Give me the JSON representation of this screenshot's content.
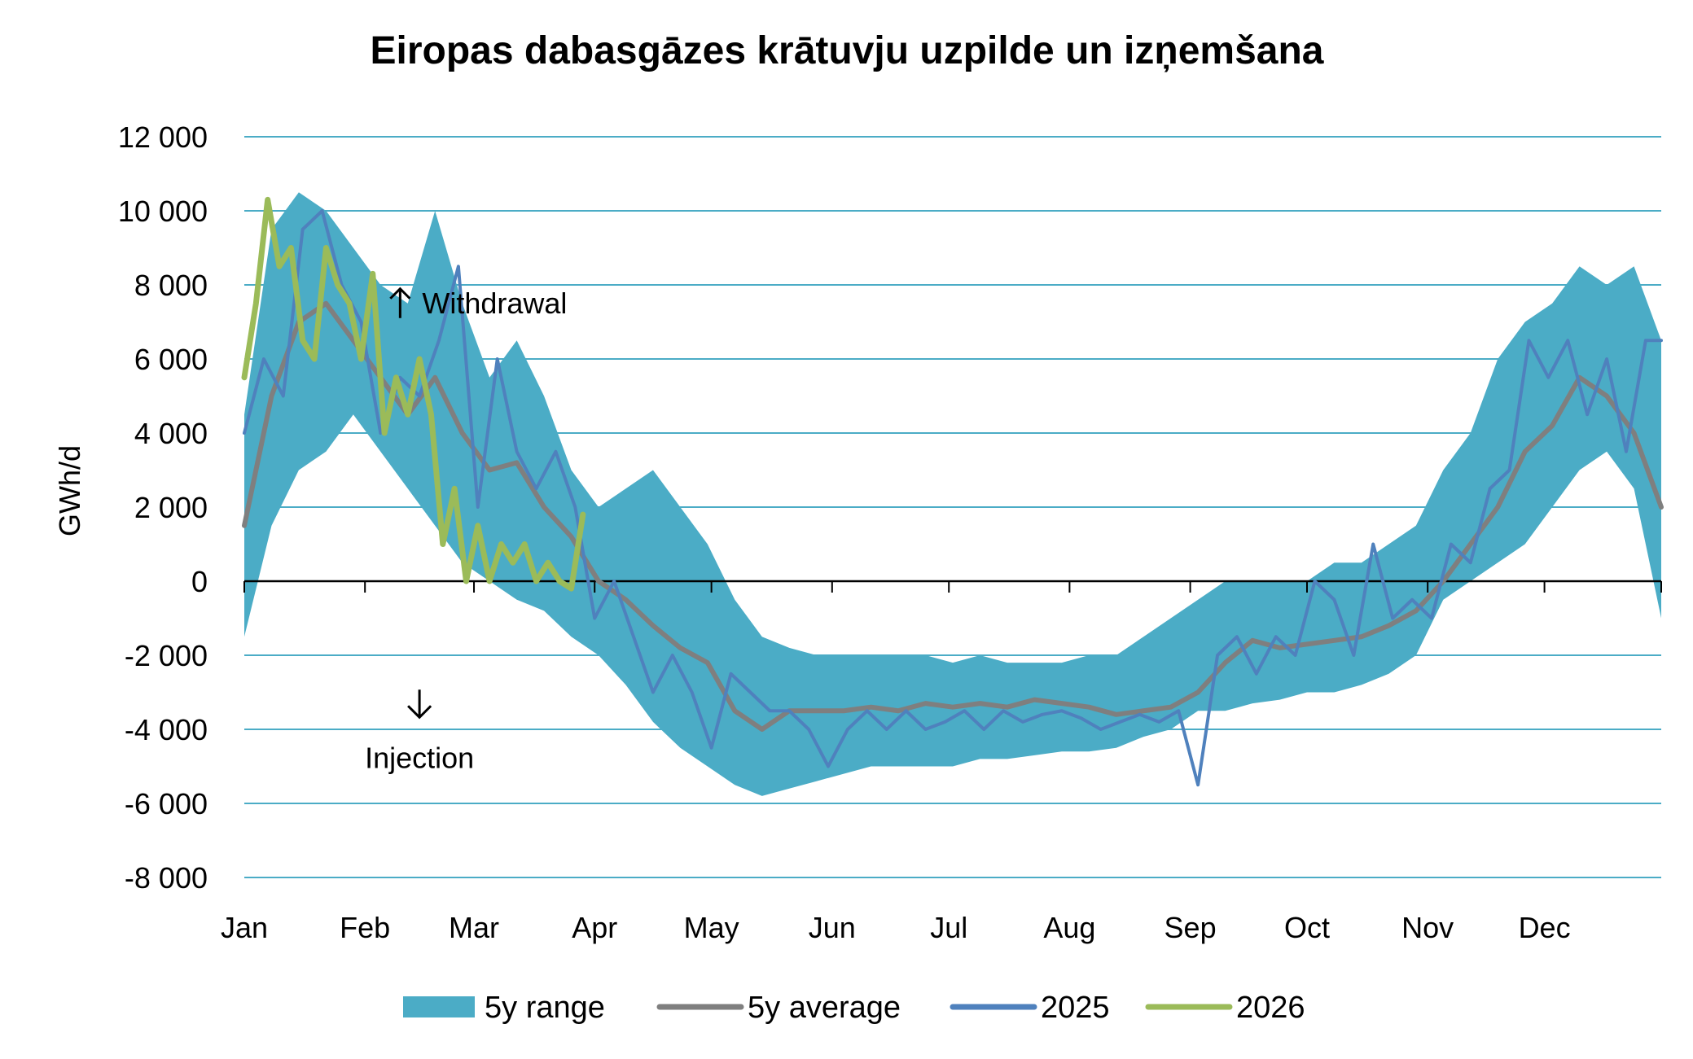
{
  "chart_data": {
    "type": "line",
    "title": "Eiropas dabasgāzes krātuvju uzpilde un izņemšana",
    "ylabel": "GWh/d",
    "xlabel": "",
    "ylim": [
      -8000,
      12000
    ],
    "yticks": [
      12000,
      10000,
      8000,
      6000,
      4000,
      2000,
      0,
      -2000,
      -4000,
      -6000,
      -8000
    ],
    "ytick_labels": [
      "12 000",
      "10 000",
      "8 000",
      "6 000",
      "4 000",
      "2 000",
      "0",
      "-2 000",
      "-4 000",
      "-6 000",
      "-8 000"
    ],
    "x_months": [
      "Jan",
      "Feb",
      "Mar",
      "Apr",
      "May",
      "Jun",
      "Jul",
      "Aug",
      "Sep",
      "Oct",
      "Nov",
      "Dec"
    ],
    "xlim": [
      "01-01",
      "12-31"
    ],
    "grid": true,
    "legend_position": "bottom",
    "annotations": [
      {
        "text": "Withdrawal",
        "arrow": "up",
        "at": [
          "02-23",
          7500
        ]
      },
      {
        "text": "Injection",
        "arrow": "down",
        "at": [
          "02-15",
          -3500
        ]
      }
    ],
    "colors": {
      "range": "#4bacc6",
      "average": "#7f7f7f",
      "y2025": "#4f81bd",
      "y2026": "#9bbb59",
      "grid": "#4bacc6",
      "zero_axis": "#000000"
    },
    "series": [
      {
        "name": "5y range",
        "kind": "band",
        "x": [
          "01-01",
          "01-08",
          "01-15",
          "01-22",
          "01-29",
          "02-05",
          "02-12",
          "02-19",
          "02-26",
          "03-05",
          "03-12",
          "03-19",
          "03-26",
          "04-02",
          "04-09",
          "04-16",
          "04-23",
          "04-30",
          "05-07",
          "05-14",
          "05-21",
          "05-28",
          "06-04",
          "06-11",
          "06-18",
          "06-25",
          "07-02",
          "07-09",
          "07-16",
          "07-23",
          "07-30",
          "08-06",
          "08-13",
          "08-20",
          "08-27",
          "09-03",
          "09-10",
          "09-17",
          "09-24",
          "10-01",
          "10-08",
          "10-15",
          "10-22",
          "10-29",
          "11-05",
          "11-12",
          "11-19",
          "11-26",
          "12-03",
          "12-10",
          "12-17",
          "12-24",
          "12-31"
        ],
        "low": [
          -1500,
          1500,
          3000,
          3500,
          4500,
          3500,
          2500,
          1500,
          500,
          0,
          -500,
          -800,
          -1500,
          -2000,
          -2800,
          -3800,
          -4500,
          -5000,
          -5500,
          -5800,
          -5600,
          -5400,
          -5200,
          -5000,
          -5000,
          -5000,
          -5000,
          -4800,
          -4800,
          -4700,
          -4600,
          -4600,
          -4500,
          -4200,
          -4000,
          -3500,
          -3500,
          -3300,
          -3200,
          -3000,
          -3000,
          -2800,
          -2500,
          -2000,
          -500,
          0,
          500,
          1000,
          2000,
          3000,
          3500,
          2500,
          -1000
        ],
        "high": [
          4500,
          9500,
          10500,
          10000,
          9000,
          8000,
          7500,
          10000,
          7500,
          5500,
          6500,
          5000,
          3000,
          2000,
          2500,
          3000,
          2000,
          1000,
          -500,
          -1500,
          -1800,
          -2000,
          -2000,
          -2000,
          -2000,
          -2000,
          -2200,
          -2000,
          -2200,
          -2200,
          -2200,
          -2000,
          -2000,
          -1500,
          -1000,
          -500,
          0,
          0,
          0,
          0,
          500,
          500,
          1000,
          1500,
          3000,
          4000,
          6000,
          7000,
          7500,
          8500,
          8000,
          8500,
          6500
        ]
      },
      {
        "name": "5y average",
        "x": [
          "01-01",
          "01-08",
          "01-15",
          "01-22",
          "01-29",
          "02-05",
          "02-12",
          "02-19",
          "02-26",
          "03-05",
          "03-12",
          "03-19",
          "03-26",
          "04-02",
          "04-09",
          "04-16",
          "04-23",
          "04-30",
          "05-07",
          "05-14",
          "05-21",
          "05-28",
          "06-04",
          "06-11",
          "06-18",
          "06-25",
          "07-02",
          "07-09",
          "07-16",
          "07-23",
          "07-30",
          "08-06",
          "08-13",
          "08-20",
          "08-27",
          "09-03",
          "09-10",
          "09-17",
          "09-24",
          "10-01",
          "10-08",
          "10-15",
          "10-22",
          "10-29",
          "11-05",
          "11-12",
          "11-19",
          "11-26",
          "12-03",
          "12-10",
          "12-17",
          "12-24",
          "12-31"
        ],
        "values": [
          1500,
          5000,
          7000,
          7500,
          6500,
          5500,
          4500,
          5500,
          4000,
          3000,
          3200,
          2000,
          1200,
          0,
          -500,
          -1200,
          -1800,
          -2200,
          -3500,
          -4000,
          -3500,
          -3500,
          -3500,
          -3400,
          -3500,
          -3300,
          -3400,
          -3300,
          -3400,
          -3200,
          -3300,
          -3400,
          -3600,
          -3500,
          -3400,
          -3000,
          -2200,
          -1600,
          -1800,
          -1700,
          -1600,
          -1500,
          -1200,
          -800,
          0,
          1000,
          2000,
          3500,
          4200,
          5500,
          5000,
          4000,
          2000
        ]
      },
      {
        "name": "2025",
        "x": [
          "01-01",
          "01-06",
          "01-11",
          "01-16",
          "01-21",
          "01-26",
          "01-31",
          "02-05",
          "02-10",
          "02-15",
          "02-20",
          "02-25",
          "03-02",
          "03-07",
          "03-12",
          "03-17",
          "03-22",
          "03-27",
          "04-01",
          "04-06",
          "04-11",
          "04-16",
          "04-21",
          "04-26",
          "05-01",
          "05-06",
          "05-11",
          "05-16",
          "05-21",
          "05-26",
          "05-31",
          "06-05",
          "06-10",
          "06-15",
          "06-20",
          "06-25",
          "06-30",
          "07-05",
          "07-10",
          "07-15",
          "07-20",
          "07-25",
          "07-30",
          "08-04",
          "08-09",
          "08-14",
          "08-19",
          "08-24",
          "08-29",
          "09-03",
          "09-08",
          "09-13",
          "09-18",
          "09-23",
          "09-28",
          "10-03",
          "10-08",
          "10-13",
          "10-18",
          "10-23",
          "10-28",
          "11-02",
          "11-07",
          "11-12",
          "11-17",
          "11-22",
          "11-27",
          "12-02",
          "12-07",
          "12-12",
          "12-17",
          "12-22",
          "12-27",
          "12-31"
        ],
        "values": [
          4000,
          6000,
          5000,
          9500,
          10000,
          8000,
          7000,
          4000,
          5500,
          5000,
          6500,
          8500,
          2000,
          6000,
          3500,
          2500,
          3500,
          2000,
          -1000,
          0,
          -1500,
          -3000,
          -2000,
          -3000,
          -4500,
          -2500,
          -3000,
          -3500,
          -3500,
          -4000,
          -5000,
          -4000,
          -3500,
          -4000,
          -3500,
          -4000,
          -3800,
          -3500,
          -4000,
          -3500,
          -3800,
          -3600,
          -3500,
          -3700,
          -4000,
          -3800,
          -3600,
          -3800,
          -3500,
          -5500,
          -2000,
          -1500,
          -2500,
          -1500,
          -2000,
          0,
          -500,
          -2000,
          1000,
          -1000,
          -500,
          -1000,
          1000,
          500,
          2500,
          3000,
          6500,
          5500,
          6500,
          4500,
          6000,
          3500,
          6500,
          6500
        ]
      },
      {
        "name": "2026",
        "x": [
          "01-01",
          "01-04",
          "01-07",
          "01-10",
          "01-13",
          "01-16",
          "01-19",
          "01-22",
          "01-25",
          "01-28",
          "01-31",
          "02-03",
          "02-06",
          "02-09",
          "02-12",
          "02-15",
          "02-18",
          "02-21",
          "02-24",
          "02-27",
          "03-02",
          "03-05",
          "03-08",
          "03-11",
          "03-14",
          "03-17",
          "03-20",
          "03-23",
          "03-26",
          "03-29"
        ],
        "values": [
          5500,
          7500,
          10300,
          8500,
          9000,
          6500,
          6000,
          9000,
          8000,
          7500,
          6000,
          8300,
          4000,
          5500,
          4500,
          6000,
          4500,
          1000,
          2500,
          0,
          1500,
          0,
          1000,
          500,
          1000,
          0,
          500,
          0,
          -200,
          1800
        ]
      }
    ]
  }
}
